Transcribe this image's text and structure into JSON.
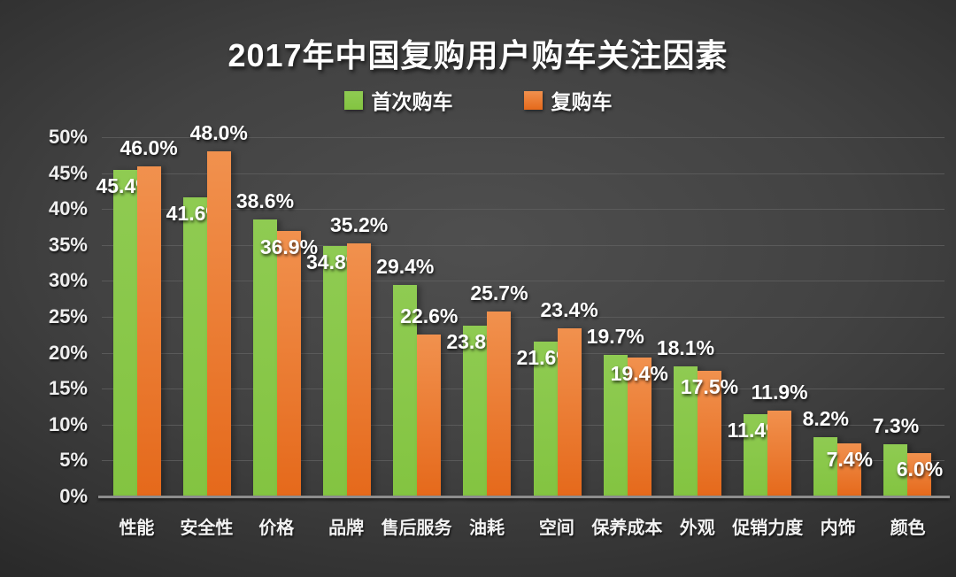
{
  "chart_data": {
    "type": "bar",
    "title": "2017年中国复购用户购车关注因素",
    "categories": [
      "性能",
      "安全性",
      "价格",
      "品牌",
      "售后服务",
      "油耗",
      "空间",
      "保养成本",
      "外观",
      "促销力度",
      "内饰",
      "颜色"
    ],
    "series": [
      {
        "name": "首次购车",
        "color": "#8FCB52",
        "color_dark": "#83C441",
        "values": [
          45.4,
          41.6,
          38.6,
          34.8,
          29.4,
          23.8,
          21.6,
          19.7,
          18.1,
          11.4,
          8.2,
          7.3
        ]
      },
      {
        "name": "复购车",
        "color": "#F1914E",
        "color_dark": "#E5691B",
        "values": [
          46.0,
          48.0,
          36.9,
          35.2,
          22.6,
          25.7,
          23.4,
          19.4,
          17.5,
          11.9,
          7.4,
          6.0
        ]
      }
    ],
    "ylim": [
      0,
      50
    ],
    "ytick_step": 5,
    "ytick_labels": [
      "50%",
      "45%",
      "40%",
      "35%",
      "30%",
      "25%",
      "20%",
      "15%",
      "10%",
      "5%",
      "0%"
    ],
    "value_suffix": "%",
    "value_decimals": 1,
    "grid": true,
    "legend_position": "top",
    "colors": {
      "background_center": "#4F4F4F",
      "background_edge": "#242424",
      "gridline": "#5E5E5E",
      "axis_line": "#8D8D8D",
      "text": "#FFFFFF"
    }
  }
}
